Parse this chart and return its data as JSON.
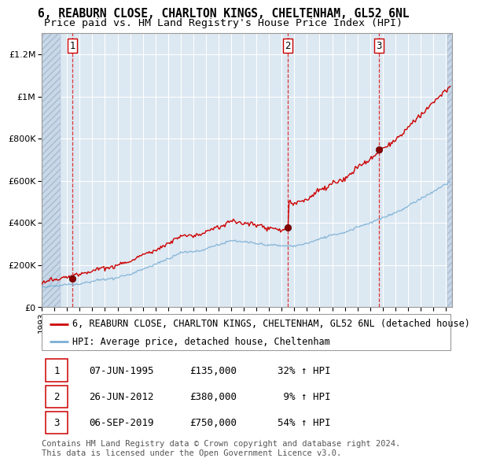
{
  "title_line1": "6, REABURN CLOSE, CHARLTON KINGS, CHELTENHAM, GL52 6NL",
  "title_line2": "Price paid vs. HM Land Registry's House Price Index (HPI)",
  "ylim": [
    0,
    1300000
  ],
  "xlim_start": 1993.0,
  "xlim_end": 2025.5,
  "yticks": [
    0,
    200000,
    400000,
    600000,
    800000,
    1000000,
    1200000
  ],
  "ytick_labels": [
    "£0",
    "£200K",
    "£400K",
    "£600K",
    "£800K",
    "£1M",
    "£1.2M"
  ],
  "sale_dates": [
    1995.44,
    2012.49,
    2019.68
  ],
  "sale_prices": [
    135000,
    380000,
    750000
  ],
  "sale_labels": [
    "1",
    "2",
    "3"
  ],
  "red_line_color": "#cc0000",
  "blue_line_color": "#7bafd4",
  "dot_color": "#880000",
  "dashed_color": "#dd2222",
  "bg_color": "#dce8f2",
  "grid_color": "#ffffff",
  "legend_entries": [
    "6, REABURN CLOSE, CHARLTON KINGS, CHELTENHAM, GL52 6NL (detached house)",
    "HPI: Average price, detached house, Cheltenham"
  ],
  "table_rows": [
    [
      "1",
      "07-JUN-1995",
      "£135,000",
      "32% ↑ HPI"
    ],
    [
      "2",
      "26-JUN-2012",
      "£380,000",
      " 9% ↑ HPI"
    ],
    [
      "3",
      "06-SEP-2019",
      "£750,000",
      "54% ↑ HPI"
    ]
  ],
  "footnote": "Contains HM Land Registry data © Crown copyright and database right 2024.\nThis data is licensed under the Open Government Licence v3.0.",
  "title_fontsize": 10.5,
  "subtitle_fontsize": 9.5,
  "tick_fontsize": 8,
  "legend_fontsize": 8.5,
  "table_fontsize": 9,
  "footnote_fontsize": 7.5
}
